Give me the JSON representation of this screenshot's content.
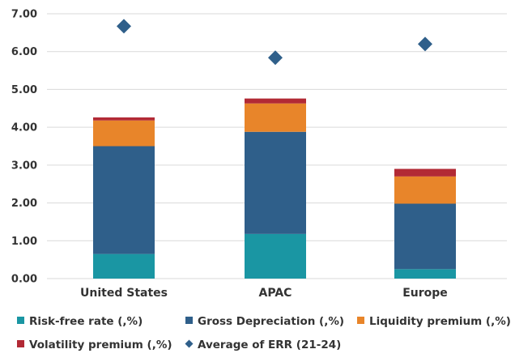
{
  "chart_data": {
    "type": "bar",
    "stacked": true,
    "categories": [
      "United States",
      "APAC",
      "Europe"
    ],
    "series": [
      {
        "name": "Risk-free rate (,%)",
        "color": "#1a96a3",
        "values": [
          0.65,
          1.18,
          0.25
        ]
      },
      {
        "name": "Gross Depreciation (,%)",
        "color": "#2f5f8a",
        "values": [
          2.85,
          2.7,
          1.73
        ]
      },
      {
        "name": "Liquidity premium (,%)",
        "color": "#e8852a",
        "values": [
          0.68,
          0.75,
          0.72
        ]
      },
      {
        "name": "Volatility premium (,%)",
        "color": "#b22a35",
        "values": [
          0.08,
          0.13,
          0.2
        ]
      }
    ],
    "markers": {
      "name": "Average of ERR (21-24)",
      "color": "#2f5f8a",
      "shape": "diamond",
      "values": [
        6.67,
        5.84,
        6.2
      ]
    },
    "ylim": [
      0,
      7
    ],
    "yticks": [
      "0.00",
      "1.00",
      "2.00",
      "3.00",
      "4.00",
      "5.00",
      "6.00",
      "7.00"
    ],
    "grid": true,
    "legend_position": "bottom"
  }
}
